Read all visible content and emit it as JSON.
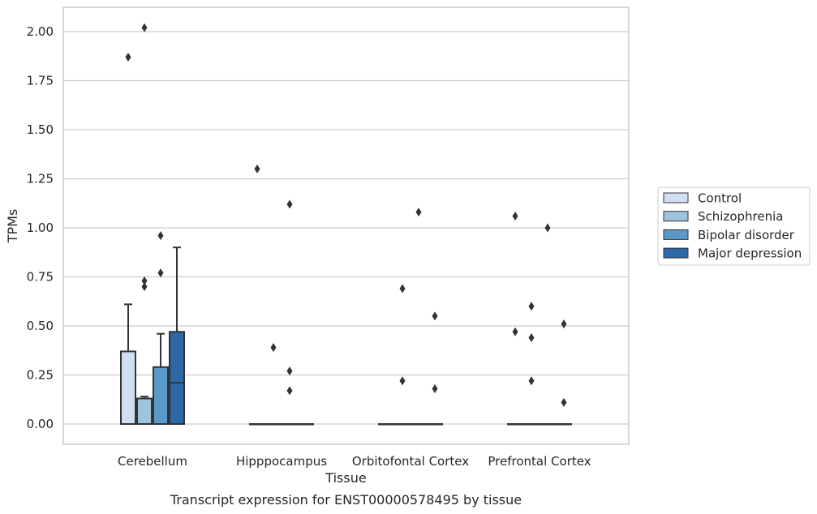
{
  "chart_data": {
    "type": "box",
    "title": "",
    "caption": "Transcript expression for ENST00000578495 by tissue",
    "xlabel": "Tissue",
    "ylabel": "TPMs",
    "ylim": [
      -0.1,
      2.13
    ],
    "yticks": [
      "0.00",
      "0.25",
      "0.50",
      "0.75",
      "1.00",
      "1.25",
      "1.50",
      "1.75",
      "2.00"
    ],
    "ytick_values": [
      0,
      0.25,
      0.5,
      0.75,
      1.0,
      1.25,
      1.5,
      1.75,
      2.0
    ],
    "grid": "horizontal",
    "legend_position": "right",
    "categories": [
      "Cerebellum",
      "Hipppocampus",
      "Orbitofontal Cortex",
      "Prefrontal Cortex"
    ],
    "series": [
      {
        "name": "Control",
        "color": "#d0e0f0",
        "boxes": [
          {
            "q1": 0,
            "median": 0,
            "q3": 0.37,
            "whislo": 0,
            "whishi": 0.61,
            "fliers": [
              1.87
            ]
          },
          {
            "q1": 0,
            "median": 0,
            "q3": 0,
            "whislo": 0,
            "whishi": 0,
            "fliers": [
              1.3
            ]
          },
          {
            "q1": 0,
            "median": 0,
            "q3": 0,
            "whislo": 0,
            "whishi": 0,
            "fliers": []
          },
          {
            "q1": 0,
            "median": 0,
            "q3": 0,
            "whislo": 0,
            "whishi": 0,
            "fliers": [
              1.06,
              0.47
            ]
          }
        ]
      },
      {
        "name": "Schizophrenia",
        "color": "#9dc3dd",
        "boxes": [
          {
            "q1": 0,
            "median": 0.13,
            "q3": 0.13,
            "whislo": 0,
            "whishi": 0.14,
            "fliers": [
              2.02,
              0.73,
              0.7
            ]
          },
          {
            "q1": 0,
            "median": 0,
            "q3": 0,
            "whislo": 0,
            "whishi": 0,
            "fliers": [
              0.39
            ]
          },
          {
            "q1": 0,
            "median": 0,
            "q3": 0,
            "whislo": 0,
            "whishi": 0,
            "fliers": [
              0.69,
              0.22
            ]
          },
          {
            "q1": 0,
            "median": 0,
            "q3": 0,
            "whislo": 0,
            "whishi": 0,
            "fliers": [
              0.6,
              0.44,
              0.22
            ]
          }
        ]
      },
      {
        "name": "Bipolar disorder",
        "color": "#5a9ac8",
        "boxes": [
          {
            "q1": 0,
            "median": 0,
            "q3": 0.29,
            "whislo": 0,
            "whishi": 0.46,
            "fliers": [
              0.96,
              0.77
            ]
          },
          {
            "q1": 0,
            "median": 0,
            "q3": 0,
            "whislo": 0,
            "whishi": 0,
            "fliers": [
              1.12,
              0.27,
              0.17
            ]
          },
          {
            "q1": 0,
            "median": 0,
            "q3": 0,
            "whislo": 0,
            "whishi": 0,
            "fliers": [
              1.08
            ]
          },
          {
            "q1": 0,
            "median": 0,
            "q3": 0,
            "whislo": 0,
            "whishi": 0,
            "fliers": [
              1.0
            ]
          }
        ]
      },
      {
        "name": "Major depression",
        "color": "#2d68a6",
        "boxes": [
          {
            "q1": 0,
            "median": 0.21,
            "q3": 0.47,
            "whislo": 0,
            "whishi": 0.9,
            "fliers": []
          },
          {
            "q1": 0,
            "median": 0,
            "q3": 0,
            "whislo": 0,
            "whishi": 0,
            "fliers": []
          },
          {
            "q1": 0,
            "median": 0,
            "q3": 0,
            "whislo": 0,
            "whishi": 0,
            "fliers": [
              0.55,
              0.18
            ]
          },
          {
            "q1": 0,
            "median": 0,
            "q3": 0,
            "whislo": 0,
            "whishi": 0,
            "fliers": [
              0.51,
              0.11
            ]
          }
        ]
      }
    ]
  }
}
